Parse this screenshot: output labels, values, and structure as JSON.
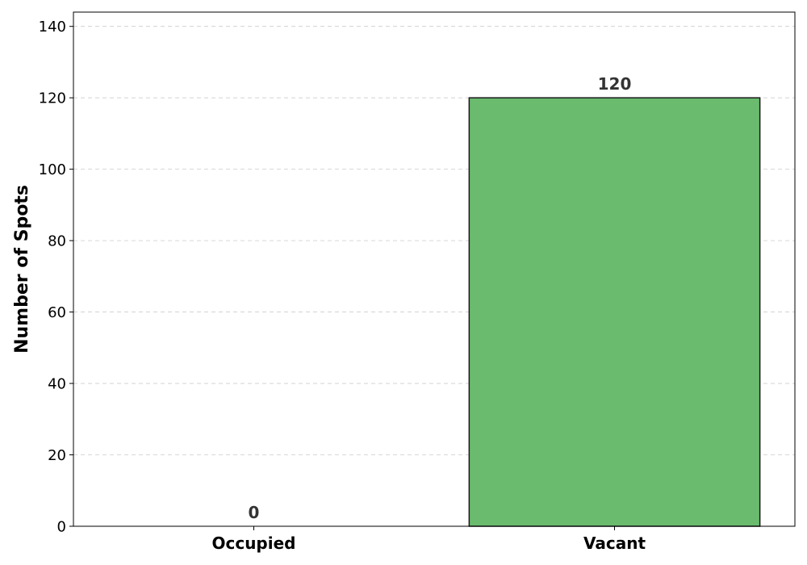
{
  "chart_data": {
    "type": "bar",
    "categories": [
      "Occupied",
      "Vacant"
    ],
    "values": [
      0,
      120
    ],
    "data_labels": [
      "0",
      "120"
    ],
    "title": "",
    "xlabel": "",
    "ylabel": "Number of Spots",
    "ylim": [
      0,
      144
    ],
    "yticks": [
      0,
      20,
      40,
      60,
      80,
      100,
      120,
      140
    ],
    "ytick_labels": [
      "0",
      "20",
      "40",
      "60",
      "80",
      "100",
      "120",
      "140"
    ],
    "grid": "y-dashed",
    "legend": "none",
    "colors": {
      "bar_fill": "#6abb6e",
      "bar_edge": "#1a1a1a",
      "grid": "#cccccc",
      "data_label": "#333333"
    }
  }
}
